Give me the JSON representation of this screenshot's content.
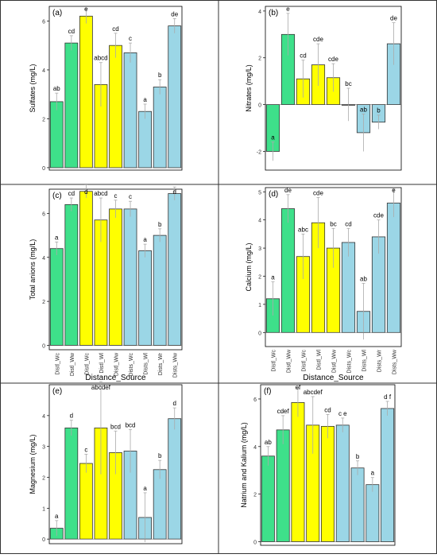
{
  "colors": {
    "green": "#3EE08A",
    "yellow": "#FFFF00",
    "blue": "#9BD6E6",
    "error": "#aaaaaa",
    "frame": "#333333"
  },
  "categories": [
    "Distl_Wc",
    "Distl_Ww",
    "Distl_Wc",
    "Distl_Wl",
    "Distl_Ww",
    "Dists_Wc",
    "Dists_Wl",
    "Dists_Wr",
    "Dists_Ww"
  ],
  "bar_colors": [
    "green",
    "green",
    "yellow",
    "yellow",
    "yellow",
    "blue",
    "blue",
    "blue",
    "blue"
  ],
  "xlabel": "Distance_Source",
  "chart_data": [
    {
      "type": "bar",
      "panel": "(a)",
      "ylabel": "Sulfates (mg/L)",
      "ylim": [
        -0.1,
        6.6
      ],
      "yticks": [
        0,
        2,
        4,
        6
      ],
      "values": [
        2.7,
        5.1,
        6.2,
        3.4,
        5.0,
        4.7,
        2.3,
        3.3,
        5.8
      ],
      "errors": [
        0.35,
        0.3,
        0.3,
        0.9,
        0.5,
        0.4,
        0.3,
        0.3,
        0.3
      ],
      "letters": [
        "ab",
        "cd",
        "e",
        "abcd",
        "cd",
        "c",
        "a",
        "b",
        "de"
      ]
    },
    {
      "type": "bar",
      "panel": "(b)",
      "ylabel": "Nitrates (mg/L)",
      "ylim": [
        -2.8,
        4.2
      ],
      "yticks": [
        -2,
        0,
        2,
        4
      ],
      "values": [
        -2.0,
        3.0,
        1.1,
        1.7,
        1.15,
        0.0,
        -1.2,
        -0.75,
        2.6
      ],
      "errors": [
        0.4,
        0.9,
        0.8,
        0.9,
        0.6,
        0.7,
        0.8,
        0.3,
        0.9
      ],
      "letters": [
        "a",
        "e",
        "cd",
        "cde",
        "cde",
        "bc",
        "ab",
        "b",
        "de"
      ]
    },
    {
      "type": "bar",
      "panel": "(c)",
      "ylabel": "Total anions (mg/L)",
      "ylim": [
        -0.2,
        7.1
      ],
      "yticks": [
        0,
        2,
        4,
        6
      ],
      "values": [
        4.4,
        6.4,
        7.0,
        5.7,
        6.2,
        6.2,
        4.3,
        5.0,
        6.9
      ],
      "errors": [
        0.3,
        0.3,
        0.3,
        1.0,
        0.4,
        0.35,
        0.3,
        0.3,
        0.3
      ],
      "letters": [
        "a",
        "cd",
        "d",
        "abcd",
        "c",
        "c",
        "a",
        "b",
        "d"
      ]
    },
    {
      "type": "bar",
      "panel": "(d)",
      "ylabel": "Calcium (mg/L)",
      "ylim": [
        -0.5,
        5.15
      ],
      "yticks": [
        0,
        1,
        2,
        3,
        4,
        5
      ],
      "values": [
        1.2,
        4.4,
        2.7,
        3.9,
        3.0,
        3.2,
        0.75,
        3.4,
        4.6
      ],
      "errors": [
        0.6,
        0.5,
        0.8,
        0.9,
        0.7,
        0.5,
        1.0,
        0.6,
        0.5
      ],
      "letters": [
        "a",
        "de",
        "abc",
        "cde",
        "bc",
        "cd",
        "ab",
        "cde",
        "e"
      ]
    },
    {
      "type": "bar",
      "panel": "(e)",
      "ylabel": "Magnesium (mg/L)",
      "ylim": [
        -0.15,
        5.0
      ],
      "yticks": [
        0,
        1,
        2,
        3,
        4
      ],
      "values": [
        0.35,
        3.6,
        2.45,
        3.6,
        2.8,
        2.85,
        0.7,
        2.25,
        3.9
      ],
      "errors": [
        0.25,
        0.25,
        0.3,
        1.5,
        0.7,
        0.7,
        0.8,
        0.3,
        0.35
      ],
      "letters": [
        "a",
        "d",
        "c",
        "abcdef",
        "bcd",
        "bcd",
        "a",
        "b",
        "d"
      ]
    },
    {
      "type": "bar",
      "panel": "(f)",
      "ylabel": "Natrium and Kalium (mg/L)",
      "ylim": [
        -0.15,
        6.6
      ],
      "yticks": [
        0,
        2,
        4,
        6
      ],
      "values": [
        3.6,
        4.7,
        5.85,
        4.9,
        4.85,
        4.9,
        3.1,
        2.4,
        5.6
      ],
      "errors": [
        0.4,
        0.6,
        0.6,
        1.2,
        0.5,
        0.3,
        0.3,
        0.3,
        0.3
      ],
      "letters": [
        "ab",
        "cdef",
        "ef",
        "abcdef",
        "cd",
        "c e",
        "b",
        "a",
        "d f"
      ]
    }
  ]
}
